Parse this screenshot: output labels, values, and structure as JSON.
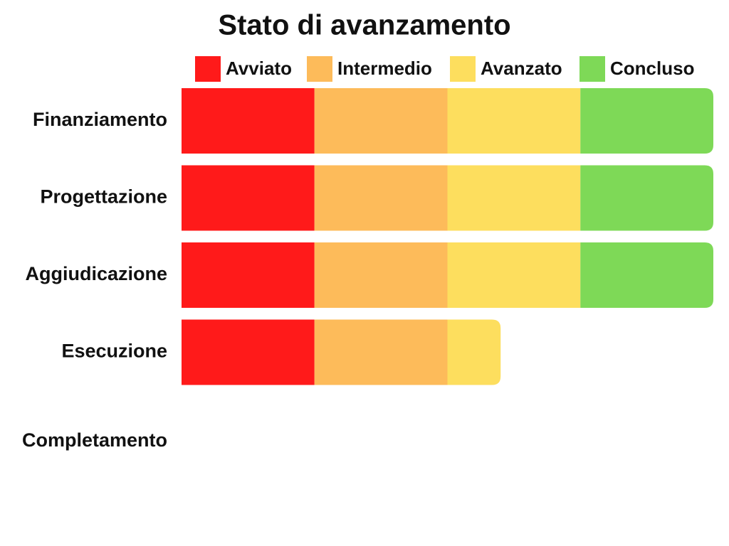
{
  "chart_data": {
    "type": "stacked-bar-horizontal",
    "title": "Stato di avanzamento",
    "categories": [
      "Finanziamento",
      "Progettazione",
      "Aggiudicazione",
      "Esecuzione",
      "Completamento"
    ],
    "series": [
      {
        "name": "Avviato",
        "color": "#ff1a1a",
        "values": [
          25,
          25,
          25,
          25,
          0
        ]
      },
      {
        "name": "Intermedio",
        "color": "#fdbb5a",
        "values": [
          25,
          25,
          25,
          25,
          0
        ]
      },
      {
        "name": "Avanzato",
        "color": "#fdde5e",
        "values": [
          25,
          25,
          25,
          10,
          0
        ]
      },
      {
        "name": "Concluso",
        "color": "#7ed957",
        "values": [
          25,
          25,
          25,
          0,
          0
        ]
      }
    ],
    "xlim": [
      0,
      100
    ]
  }
}
